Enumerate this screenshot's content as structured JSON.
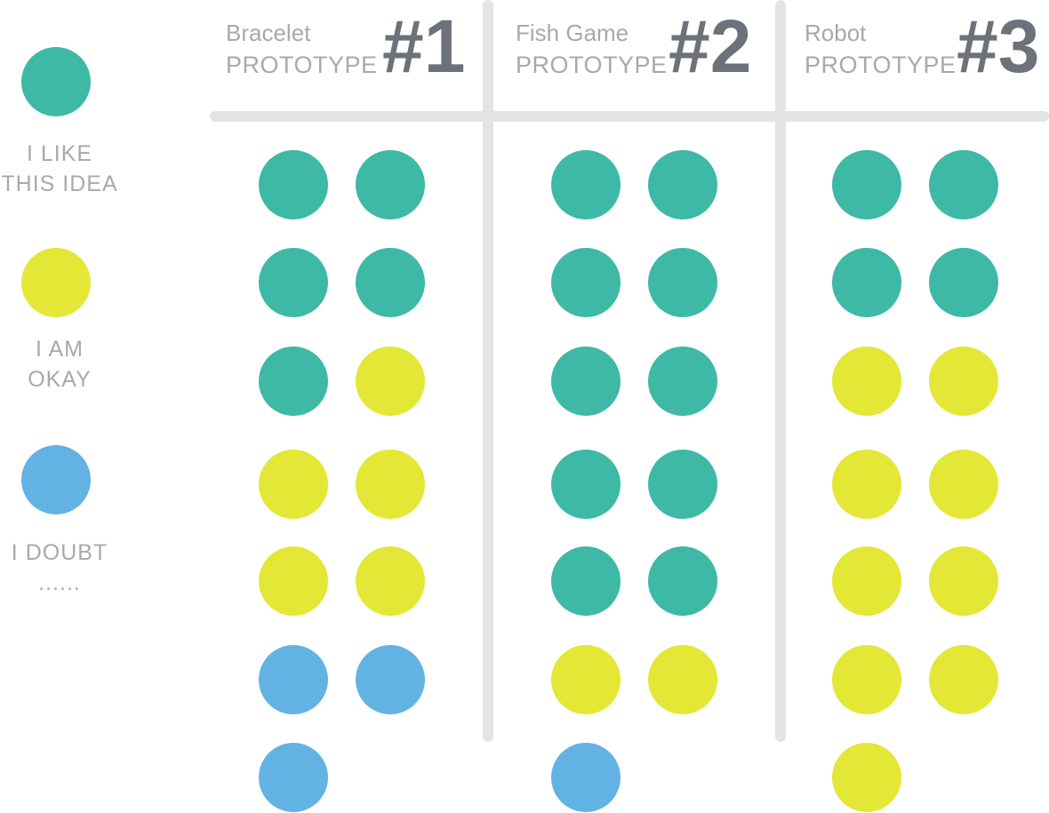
{
  "colors": {
    "like": "#3db9a5",
    "okay": "#e3e736",
    "doubt": "#63b2e4",
    "grid": "#e2e4e6",
    "label": "#a7a9ac",
    "number": "#6d7179"
  },
  "legend": [
    {
      "key": "like",
      "label": "I LIKE\nTHIS IDEA"
    },
    {
      "key": "okay",
      "label": "I AM\nOKAY"
    },
    {
      "key": "doubt",
      "label": "I DOUBT\n......"
    }
  ],
  "prototypes": [
    {
      "name": "Bracelet",
      "type_label": "PROTOTYPE",
      "number": "#1",
      "votes": {
        "like": 5,
        "okay": 5,
        "doubt": 3
      }
    },
    {
      "name": "Fish Game",
      "type_label": "PROTOTYPE",
      "number": "#2",
      "votes": {
        "like": 10,
        "okay": 2,
        "doubt": 1
      }
    },
    {
      "name": "Robot",
      "type_label": "PROTOTYPE",
      "number": "#3",
      "votes": {
        "like": 4,
        "okay": 9,
        "doubt": 0
      }
    }
  ]
}
